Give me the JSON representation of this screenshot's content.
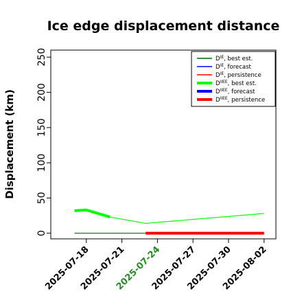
{
  "chart_data": {
    "type": "line",
    "title": "Ice edge displacement distance",
    "ylabel": "Displacement (km)",
    "xlabel": "",
    "ylim": [
      -8,
      260
    ],
    "yticks": [
      0,
      50,
      100,
      150,
      200,
      250
    ],
    "xlim": [
      "2025-07-15",
      "2025-08-03"
    ],
    "xtick_labels": [
      "2025-07-18",
      "2025-07-21",
      "2025-07-24",
      "2025-07-27",
      "2025-07-30",
      "2025-08-02"
    ],
    "highlighted_xtick": "2025-07-24",
    "legend_position": "top-right",
    "series": [
      {
        "name": "D^IE, best est.",
        "label_base": "D",
        "label_sup": "IE",
        "label_rest": ", best est.",
        "color": "#006400",
        "width": "thin",
        "points": [
          [
            "2025-07-17",
            0
          ],
          [
            "2025-07-23",
            0
          ]
        ]
      },
      {
        "name": "D^IE, forecast",
        "label_base": "D",
        "label_sup": "IE",
        "label_rest": ", forecast",
        "color": "#0000ff",
        "width": "thin",
        "points": []
      },
      {
        "name": "D^IE, persistence",
        "label_base": "D",
        "label_sup": "IE",
        "label_rest": ", persistence",
        "color": "#ff0000",
        "width": "thin",
        "points": []
      },
      {
        "name": "D^IIEE, best est.",
        "label_base": "D",
        "label_sup": "IIEE",
        "label_rest": ", best est.",
        "color": "#00ff00",
        "width": "thick",
        "points": [
          [
            "2025-07-17",
            32
          ],
          [
            "2025-07-18",
            33
          ],
          [
            "2025-07-19",
            28
          ],
          [
            "2025-07-20",
            23
          ]
        ]
      },
      {
        "name": "D^IIEE, forecast",
        "label_base": "D",
        "label_sup": "IIEE",
        "label_rest": ", forecast",
        "color": "#0000ff",
        "width": "thick",
        "points": []
      },
      {
        "name": "D^IIEE, persistence",
        "label_base": "D",
        "label_sup": "IIEE",
        "label_rest": ", persistence",
        "color": "#ff0000",
        "width": "thick",
        "points": [
          [
            "2025-07-23",
            0
          ],
          [
            "2025-08-02",
            0
          ]
        ]
      },
      {
        "name": "",
        "label_base": "",
        "label_sup": "",
        "label_rest": "",
        "color": "#00ff00",
        "width": "thin",
        "in_legend": false,
        "points": [
          [
            "2025-07-20",
            23
          ],
          [
            "2025-07-23",
            14
          ],
          [
            "2025-08-02",
            28
          ]
        ]
      }
    ],
    "colors": {
      "axis": "#000000",
      "tick_label": "#000000",
      "highlight_tick_label": "#228b22"
    }
  }
}
